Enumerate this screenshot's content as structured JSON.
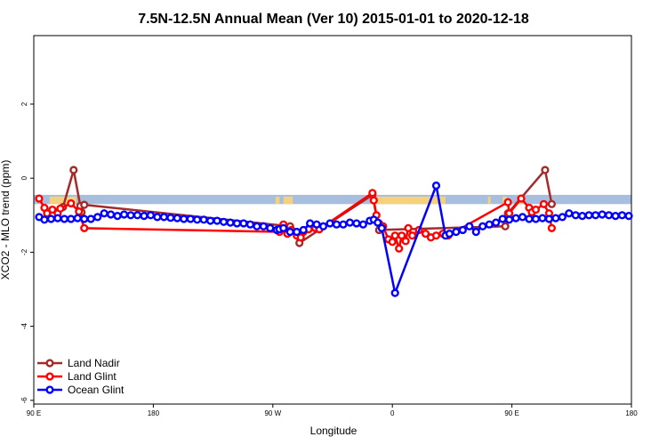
{
  "chart_data": {
    "type": "line",
    "title": "7.5N-12.5N Annual Mean (Ver 10)   2015-01-01 to 2020-12-18",
    "xlabel": "Longitude",
    "ylabel": "XCO2 - MLO trend (ppm)",
    "x_ticks": [
      {
        "value": 90,
        "label": "90 E"
      },
      {
        "value": 180,
        "label": "180"
      },
      {
        "value": 270,
        "label": "90 W"
      },
      {
        "value": 360,
        "label": "0"
      },
      {
        "value": 450,
        "label": "90 E"
      },
      {
        "value": 540,
        "label": "180"
      }
    ],
    "y_ticks": [
      {
        "value": 2,
        "label": "2"
      },
      {
        "value": 0,
        "label": "0"
      },
      {
        "value": -2,
        "label": "-2"
      },
      {
        "value": -4,
        "label": "-4"
      },
      {
        "value": -6,
        "label": "-6"
      }
    ],
    "xlim": [
      90,
      540
    ],
    "ylim": [
      -6.1,
      3.85
    ],
    "land_band": {
      "y_top": -0.45,
      "y_bottom": -0.7,
      "color": "#a8bedf"
    },
    "land_mask": {
      "color": "#f5d27a",
      "segments": [
        [
          102,
          112
        ],
        [
          108,
          122
        ],
        [
          272,
          275
        ],
        [
          278,
          285
        ],
        [
          344,
          346
        ],
        [
          345,
          400
        ],
        [
          432,
          434
        ],
        [
          443,
          446
        ],
        [
          455,
          458
        ]
      ]
    },
    "legend": {
      "position": "bottom-left"
    },
    "series": [
      {
        "name": "Land Nadir",
        "color": "#a52a2a",
        "x": [
          100,
          112,
          120,
          125,
          126,
          128,
          283,
          290,
          345,
          350,
          445,
          447,
          475,
          480
        ],
        "y": [
          -0.95,
          -0.78,
          0.22,
          -0.75,
          -0.92,
          -0.72,
          -1.3,
          -1.75,
          -0.45,
          -1.4,
          -1.3,
          -0.95,
          0.22,
          -0.7
        ]
      },
      {
        "name": "Land Glint",
        "color": "#ff0000",
        "x": [
          94,
          98,
          100,
          104,
          108,
          110,
          118,
          124,
          128,
          275,
          278,
          281,
          284,
          288,
          291,
          293,
          297,
          302,
          305,
          345,
          346,
          348,
          350,
          353,
          357,
          360,
          362,
          365,
          367,
          370,
          372,
          375,
          380,
          385,
          389,
          393,
          398,
          402,
          447,
          448,
          457,
          463,
          465,
          468,
          474,
          478,
          480
        ],
        "y": [
          -0.55,
          -0.8,
          -0.95,
          -0.85,
          -0.95,
          -0.82,
          -0.68,
          -0.9,
          -1.35,
          -1.45,
          -1.25,
          -1.5,
          -1.4,
          -1.55,
          -1.6,
          -1.45,
          -1.38,
          -1.35,
          -1.38,
          -0.4,
          -0.6,
          -1.0,
          -1.22,
          -1.3,
          -1.65,
          -1.72,
          -1.55,
          -1.9,
          -1.55,
          -1.7,
          -1.35,
          -1.55,
          -1.4,
          -1.5,
          -1.6,
          -1.55,
          -1.5,
          -1.55,
          -0.65,
          -0.95,
          -0.55,
          -0.8,
          -0.92,
          -0.85,
          -0.7,
          -0.95,
          -1.35
        ]
      },
      {
        "name": "Ocean Glint",
        "color": "#0000ff",
        "x": [
          94,
          98,
          103,
          108,
          113,
          118,
          123,
          128,
          133,
          138,
          143,
          148,
          153,
          158,
          163,
          168,
          173,
          178,
          183,
          188,
          193,
          198,
          203,
          208,
          213,
          218,
          223,
          228,
          233,
          238,
          243,
          248,
          253,
          258,
          263,
          268,
          273,
          275,
          278,
          283,
          288,
          293,
          298,
          303,
          308,
          313,
          318,
          323,
          328,
          333,
          338,
          343,
          346,
          349,
          352,
          362,
          393,
          400,
          403,
          408,
          413,
          418,
          423,
          428,
          433,
          438,
          443,
          448,
          453,
          458,
          463,
          468,
          473,
          478,
          483,
          488,
          493,
          498,
          503,
          508,
          513,
          518,
          523,
          528,
          533,
          538
        ],
        "y": [
          -1.05,
          -1.12,
          -1.1,
          -1.08,
          -1.1,
          -1.1,
          -1.08,
          -1.1,
          -1.1,
          -1.05,
          -0.95,
          -0.98,
          -1.02,
          -0.98,
          -1.0,
          -1.0,
          -1.02,
          -1.0,
          -1.05,
          -1.05,
          -1.07,
          -1.08,
          -1.1,
          -1.1,
          -1.12,
          -1.12,
          -1.15,
          -1.15,
          -1.18,
          -1.2,
          -1.22,
          -1.22,
          -1.25,
          -1.3,
          -1.3,
          -1.35,
          -1.4,
          -1.38,
          -1.35,
          -1.45,
          -1.45,
          -1.4,
          -1.22,
          -1.25,
          -1.3,
          -1.22,
          -1.25,
          -1.25,
          -1.2,
          -1.22,
          -1.25,
          -1.15,
          -1.12,
          -1.2,
          -1.35,
          -3.1,
          -0.2,
          -1.55,
          -1.5,
          -1.45,
          -1.4,
          -1.3,
          -1.45,
          -1.3,
          -1.25,
          -1.2,
          -1.1,
          -1.12,
          -1.08,
          -1.05,
          -1.1,
          -1.1,
          -1.08,
          -1.1,
          -1.08,
          -1.05,
          -0.95,
          -1.0,
          -1.02,
          -1.0,
          -1.0,
          -0.98,
          -1.0,
          -1.02,
          -1.0,
          -1.02
        ]
      }
    ]
  }
}
